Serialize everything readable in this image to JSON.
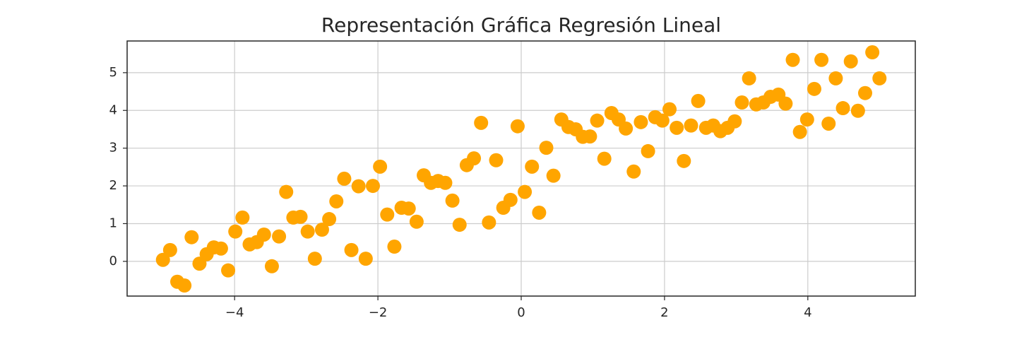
{
  "chart_data": {
    "type": "scatter",
    "title": "Representación Gráfica Regresión Lineal",
    "color": "#ffa500",
    "grid": true,
    "xlim": [
      -5.5,
      5.5
    ],
    "ylim": [
      -0.92,
      5.84
    ],
    "xticks": [
      {
        "value": -4,
        "label": "−4"
      },
      {
        "value": -2,
        "label": "−2"
      },
      0,
      2,
      4
    ],
    "yticks": [
      0,
      1,
      2,
      3,
      4,
      5
    ],
    "x": [
      -5,
      -4.9,
      -4.8,
      -4.7,
      -4.6,
      -4.49,
      -4.39,
      -4.29,
      -4.19,
      -4.09,
      -3.99,
      -3.89,
      -3.79,
      -3.69,
      -3.59,
      -3.48,
      -3.38,
      -3.28,
      -3.18,
      -3.08,
      -2.98,
      -2.88,
      -2.78,
      -2.68,
      -2.58,
      -2.47,
      -2.37,
      -2.27,
      -2.17,
      -2.07,
      -1.97,
      -1.87,
      -1.77,
      -1.67,
      -1.57,
      -1.46,
      -1.36,
      -1.26,
      -1.16,
      -1.06,
      -0.96,
      -0.86,
      -0.76,
      -0.66,
      -0.56,
      -0.45,
      -0.35,
      -0.25,
      -0.15,
      -0.05,
      0.05,
      0.15,
      0.25,
      0.35,
      0.45,
      0.56,
      0.66,
      0.76,
      0.86,
      0.96,
      1.06,
      1.16,
      1.26,
      1.36,
      1.46,
      1.57,
      1.67,
      1.77,
      1.87,
      1.97,
      2.07,
      2.17,
      2.27,
      2.37,
      2.47,
      2.58,
      2.68,
      2.78,
      2.88,
      2.98,
      3.08,
      3.18,
      3.28,
      3.38,
      3.48,
      3.59,
      3.69,
      3.79,
      3.89,
      3.99,
      4.09,
      4.19,
      4.29,
      4.39,
      4.49,
      4.6,
      4.7,
      4.8,
      4.9,
      5
    ],
    "values": [
      0.04,
      0.3,
      -0.54,
      -0.64,
      0.64,
      -0.06,
      0.19,
      0.37,
      0.34,
      -0.24,
      0.79,
      1.16,
      0.45,
      0.51,
      0.71,
      -0.13,
      0.66,
      1.84,
      1.16,
      1.18,
      0.79,
      0.07,
      0.84,
      1.12,
      1.59,
      2.19,
      0.3,
      1.99,
      0.07,
      2.0,
      2.51,
      1.24,
      0.39,
      1.42,
      1.4,
      1.05,
      2.28,
      2.08,
      2.13,
      2.08,
      1.61,
      0.97,
      2.55,
      2.73,
      3.67,
      1.03,
      2.68,
      1.42,
      1.63,
      3.58,
      1.84,
      2.51,
      1.29,
      3.01,
      2.27,
      3.76,
      3.56,
      3.5,
      3.3,
      3.31,
      3.73,
      2.72,
      3.93,
      3.76,
      3.52,
      2.38,
      3.69,
      2.92,
      3.82,
      3.73,
      4.03,
      3.54,
      2.66,
      3.6,
      4.25,
      3.54,
      3.6,
      3.45,
      3.54,
      3.71,
      4.21,
      4.85,
      4.16,
      4.21,
      4.36,
      4.42,
      4.18,
      5.34,
      3.43,
      3.76,
      4.57,
      5.34,
      3.65,
      4.85,
      4.06,
      5.3,
      3.99,
      4.46,
      5.54,
      4.85
    ]
  }
}
